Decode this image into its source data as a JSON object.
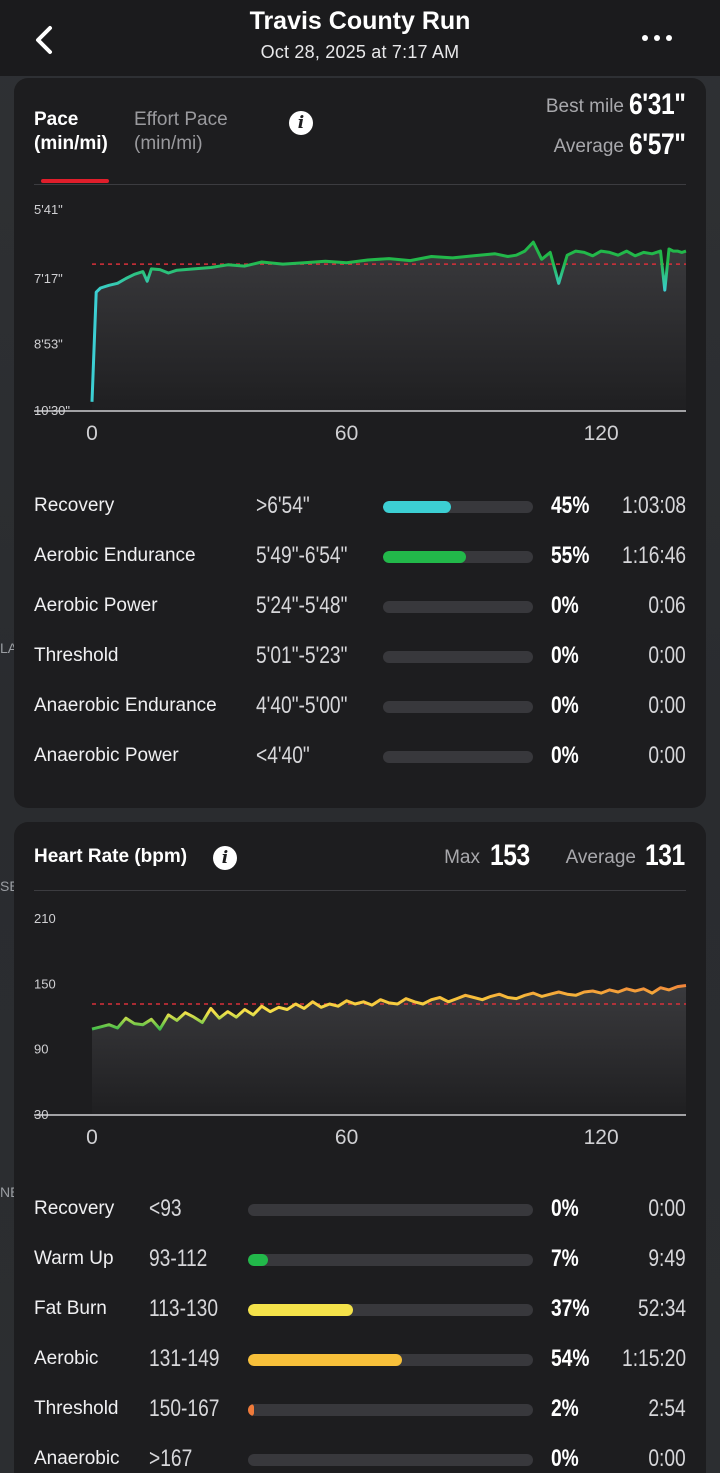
{
  "header": {
    "title": "Travis County Run",
    "subtitle": "Oct 28, 2025 at 7:17 AM"
  },
  "background_map_labels": [
    "LA",
    "SE",
    "NE"
  ],
  "pace": {
    "tab_active_line1": "Pace",
    "tab_active_line2": "(min/mi)",
    "tab_other_line1": "Effort Pace",
    "tab_other_line2": "(min/mi)",
    "best_mile_label": "Best mile",
    "best_mile_value": "6'31\"",
    "average_label": "Average",
    "average_value": "6'57\"",
    "zones": [
      {
        "name": "Recovery",
        "range": ">6'54\"",
        "percent": "45%",
        "fraction": 0.45,
        "time": "1:03:08",
        "color": "#3ccfd3"
      },
      {
        "name": "Aerobic Endurance",
        "range": "5'49\"-6'54\"",
        "percent": "55%",
        "fraction": 0.55,
        "time": "1:16:46",
        "color": "#22b84a"
      },
      {
        "name": "Aerobic Power",
        "range": "5'24\"-5'48\"",
        "percent": "0%",
        "fraction": 0,
        "time": "0:06",
        "color": "#8ad23c"
      },
      {
        "name": "Threshold",
        "range": "5'01\"-5'23\"",
        "percent": "0%",
        "fraction": 0,
        "time": "0:00",
        "color": "#f6d84a"
      },
      {
        "name": "Anaerobic Endurance",
        "range": "4'40\"-5'00\"",
        "percent": "0%",
        "fraction": 0,
        "time": "0:00",
        "color": "#f4a035"
      },
      {
        "name": "Anaerobic Power",
        "range": "<4'40\"",
        "percent": "0%",
        "fraction": 0,
        "time": "0:00",
        "color": "#e2563a"
      }
    ]
  },
  "heart_rate": {
    "title": "Heart Rate (bpm)",
    "max_label": "Max",
    "max_value": "153",
    "average_label": "Average",
    "average_value": "131",
    "zones": [
      {
        "name": "Recovery",
        "range": "<93",
        "percent": "0%",
        "fraction": 0,
        "time": "0:00",
        "color": "#9a9a9e"
      },
      {
        "name": "Warm Up",
        "range": "93-112",
        "percent": "7%",
        "fraction": 0.07,
        "time": "9:49",
        "color": "#22b84a"
      },
      {
        "name": "Fat Burn",
        "range": "113-130",
        "percent": "37%",
        "fraction": 0.37,
        "time": "52:34",
        "color": "#f4e24a"
      },
      {
        "name": "Aerobic",
        "range": "131-149",
        "percent": "54%",
        "fraction": 0.54,
        "time": "1:15:20",
        "color": "#f7c03a"
      },
      {
        "name": "Threshold",
        "range": "150-167",
        "percent": "2%",
        "fraction": 0.02,
        "time": "2:54",
        "color": "#ef7a3a"
      },
      {
        "name": "Anaerobic",
        "range": ">167",
        "percent": "0%",
        "fraction": 0,
        "time": "0:00",
        "color": "#e03a3a"
      }
    ]
  },
  "chart_data": [
    {
      "type": "line",
      "xlabel": "",
      "ylabel": "",
      "x_ticks": [
        "0",
        "60",
        "120"
      ],
      "xlim": [
        0,
        140
      ],
      "y_ticks": [
        "5'41\"",
        "7'17\"",
        "8'53\"",
        "10'30\""
      ],
      "y_tick_values_sec": [
        341,
        437,
        533,
        630
      ],
      "ylim_sec": [
        341,
        630
      ],
      "y_inverted": true,
      "average_line_sec": 417,
      "grid": false,
      "series": [
        {
          "x": [
            0,
            1,
            2,
            4,
            6,
            8,
            10,
            12,
            13,
            14,
            16,
            18,
            20,
            24,
            28,
            32,
            36,
            40,
            45,
            50,
            55,
            60,
            65,
            70,
            75,
            80,
            85,
            90,
            95,
            98,
            100,
            102,
            104,
            106,
            108,
            110,
            112,
            114,
            116,
            118,
            120,
            122,
            124,
            126,
            128,
            130,
            132,
            134,
            135,
            136,
            137,
            138,
            139,
            140
          ],
          "y_sec": [
            618,
            458,
            452,
            448,
            445,
            438,
            432,
            428,
            442,
            424,
            425,
            430,
            426,
            424,
            422,
            418,
            420,
            414,
            417,
            415,
            413,
            415,
            411,
            409,
            412,
            406,
            408,
            405,
            402,
            406,
            404,
            398,
            385,
            410,
            400,
            445,
            404,
            398,
            400,
            405,
            398,
            400,
            404,
            398,
            405,
            400,
            402,
            398,
            455,
            395,
            398,
            398,
            400,
            398
          ],
          "color_by_value": true
        }
      ]
    },
    {
      "type": "line",
      "xlabel": "",
      "ylabel": "",
      "x_ticks": [
        "0",
        "60",
        "120"
      ],
      "xlim": [
        0,
        140
      ],
      "y_ticks": [
        "210",
        "150",
        "90",
        "30"
      ],
      "ylim": [
        30,
        210
      ],
      "average_line": 131,
      "grid": false,
      "series": [
        {
          "x": [
            0,
            2,
            4,
            6,
            8,
            10,
            12,
            14,
            16,
            18,
            20,
            22,
            24,
            26,
            28,
            30,
            32,
            34,
            36,
            38,
            40,
            42,
            44,
            46,
            48,
            50,
            52,
            54,
            56,
            58,
            60,
            62,
            64,
            66,
            68,
            70,
            72,
            74,
            76,
            78,
            80,
            82,
            84,
            86,
            88,
            90,
            92,
            94,
            96,
            98,
            100,
            102,
            104,
            106,
            108,
            110,
            112,
            114,
            116,
            118,
            120,
            122,
            124,
            126,
            128,
            130,
            132,
            134,
            136,
            138,
            140
          ],
          "y": [
            108,
            110,
            112,
            109,
            118,
            113,
            112,
            117,
            108,
            121,
            116,
            123,
            119,
            114,
            127,
            118,
            124,
            119,
            126,
            121,
            129,
            124,
            128,
            126,
            131,
            127,
            133,
            128,
            131,
            129,
            134,
            131,
            133,
            130,
            135,
            132,
            131,
            136,
            133,
            131,
            135,
            137,
            133,
            136,
            139,
            137,
            135,
            138,
            140,
            137,
            136,
            139,
            141,
            138,
            140,
            142,
            140,
            139,
            142,
            143,
            141,
            144,
            142,
            145,
            143,
            145,
            141,
            146,
            144,
            147,
            148
          ],
          "color_by_value": true
        }
      ]
    }
  ]
}
